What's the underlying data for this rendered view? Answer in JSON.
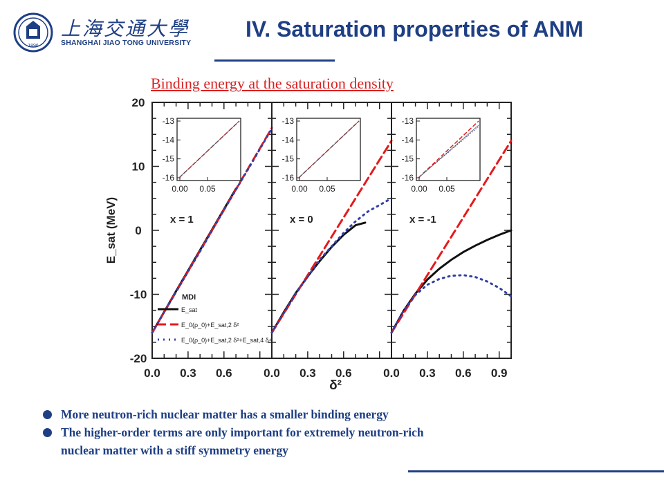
{
  "header": {
    "university_cn": "上海交通大學",
    "university_en": "SHANGHAI JIAO TONG UNIVERSITY",
    "seal_year": "1896",
    "title": "IV. Saturation properties of ANM",
    "subtitle": "Binding energy at the saturation density"
  },
  "bullets": [
    "More neutron-rich nuclear matter has a smaller binding energy",
    "The higher-order terms are only important for extremely neutron-rich",
    "nuclear matter with a stiff symmetry energy"
  ],
  "colors": {
    "brand": "#1f3f84",
    "accent": "#d92020",
    "series_black": "#111111",
    "series_red": "#e41a1c",
    "series_blue": "#3340a8"
  },
  "chart_data": {
    "type": "line",
    "xlabel": "δ²",
    "ylabel": "E_sat (MeV)",
    "ylim": [
      -20,
      20
    ],
    "yticks": [
      "20",
      "10",
      "0",
      "-10",
      "-20"
    ],
    "panels": [
      {
        "label": "x = 1",
        "xlim": [
          0,
          1
        ],
        "xticks": [
          "0.0",
          "0.3",
          "0.6"
        ],
        "series": [
          {
            "name": "E_sat",
            "style": "solid-black",
            "x": [
              0,
              0.2,
              0.4,
              0.6,
              0.7
            ],
            "y": [
              -16,
              -9.5,
              -3.1,
              3.3,
              6.5
            ]
          },
          {
            "name": "E_0(ρ_0)+E_sat,2 δ²",
            "style": "dashed-red",
            "x": [
              0,
              0.2,
              0.4,
              0.6,
              0.8,
              1.0
            ],
            "y": [
              -16,
              -9.6,
              -3.2,
              3.2,
              9.6,
              16
            ]
          },
          {
            "name": "E_0(ρ_0)+E_sat,2 δ²+E_sat,4 δ⁴",
            "style": "dotted-blue",
            "x": [
              0,
              0.2,
              0.4,
              0.6,
              0.8,
              1.0
            ],
            "y": [
              -16,
              -9.6,
              -3.3,
              3.2,
              9.5,
              15.9
            ]
          }
        ],
        "inset": {
          "xticks": [
            "0.00",
            "0.05"
          ],
          "yticks": [
            "-13",
            "-14",
            "-15",
            "-16"
          ]
        }
      },
      {
        "label": "x = 0",
        "xlim": [
          0,
          1
        ],
        "xticks": [
          "0.0",
          "0.3",
          "0.6"
        ],
        "series": [
          {
            "name": "E_sat",
            "style": "solid-black",
            "x": [
              0,
              0.1,
              0.2,
              0.3,
              0.4,
              0.5,
              0.6,
              0.7,
              0.78
            ],
            "y": [
              -16,
              -12.8,
              -9.8,
              -7.2,
              -4.8,
              -2.6,
              -0.7,
              0.8,
              1.2
            ]
          },
          {
            "name": "E_0(ρ_0)+E_sat,2 δ²",
            "style": "dashed-red",
            "x": [
              0,
              0.2,
              0.4,
              0.6,
              0.8,
              1.0
            ],
            "y": [
              -16,
              -10,
              -4,
              2,
              8,
              14
            ]
          },
          {
            "name": "E_0(ρ_0)+E_sat,2 δ²+E_sat,4 δ⁴",
            "style": "dotted-blue",
            "x": [
              0,
              0.2,
              0.4,
              0.6,
              0.7,
              0.8,
              1.0
            ],
            "y": [
              -16,
              -9.9,
              -4.6,
              -0.4,
              1.4,
              2.9,
              5.0
            ]
          }
        ],
        "inset": {
          "xticks": [
            "0.00",
            "0.05"
          ],
          "yticks": [
            "-13",
            "-14",
            "-15",
            "-16"
          ]
        }
      },
      {
        "label": "x = -1",
        "xlim": [
          0,
          1
        ],
        "xticks": [
          "0.0",
          "0.3",
          "0.6",
          "0.9"
        ],
        "series": [
          {
            "name": "E_sat",
            "style": "solid-black",
            "x": [
              0,
              0.1,
              0.2,
              0.3,
              0.4,
              0.5,
              0.6,
              0.7,
              0.8,
              0.9,
              1.0
            ],
            "y": [
              -16,
              -12.6,
              -9.9,
              -7.7,
              -6.0,
              -4.6,
              -3.4,
              -2.4,
              -1.5,
              -0.7,
              0
            ]
          },
          {
            "name": "E_0(ρ_0)+E_sat,2 δ²",
            "style": "dashed-red",
            "x": [
              0,
              0.2,
              0.4,
              0.6,
              0.8,
              1.0
            ],
            "y": [
              -16,
              -10,
              -4,
              2,
              8,
              14
            ]
          },
          {
            "name": "E_0(ρ_0)+E_sat,2 δ²+E_sat,4 δ⁴",
            "style": "dotted-blue",
            "x": [
              0,
              0.1,
              0.2,
              0.3,
              0.4,
              0.5,
              0.6,
              0.7,
              0.8,
              0.9,
              1.0
            ],
            "y": [
              -16,
              -12.6,
              -10.1,
              -8.5,
              -7.6,
              -7.1,
              -7.0,
              -7.3,
              -8.0,
              -9.0,
              -10.3
            ]
          }
        ],
        "inset": {
          "xticks": [
            "0.00",
            "0.05"
          ],
          "yticks": [
            "-13",
            "-14",
            "-15",
            "-16"
          ]
        }
      }
    ],
    "legend": {
      "placement": "lower-left of first panel",
      "title": "MDI",
      "entries": [
        "E_sat",
        "E_0(ρ_0)+E_sat,2 δ²",
        "E_0(ρ_0)+E_sat,2 δ²+E_sat,4 δ⁴"
      ]
    },
    "grid": false
  }
}
